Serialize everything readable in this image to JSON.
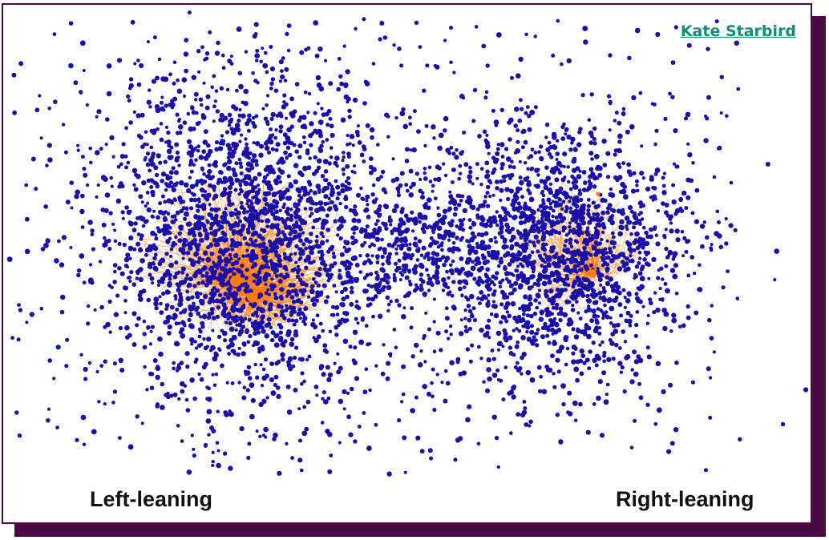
{
  "author": "Kate Starbird",
  "clusters": [
    {
      "label": "Left-leaning"
    },
    {
      "label": "Right-leaning"
    }
  ],
  "colors": {
    "node": "#1a10a8",
    "edge": "#ff7a10",
    "frame": "#4a0a44",
    "author_link": "#1a8a7a"
  }
}
